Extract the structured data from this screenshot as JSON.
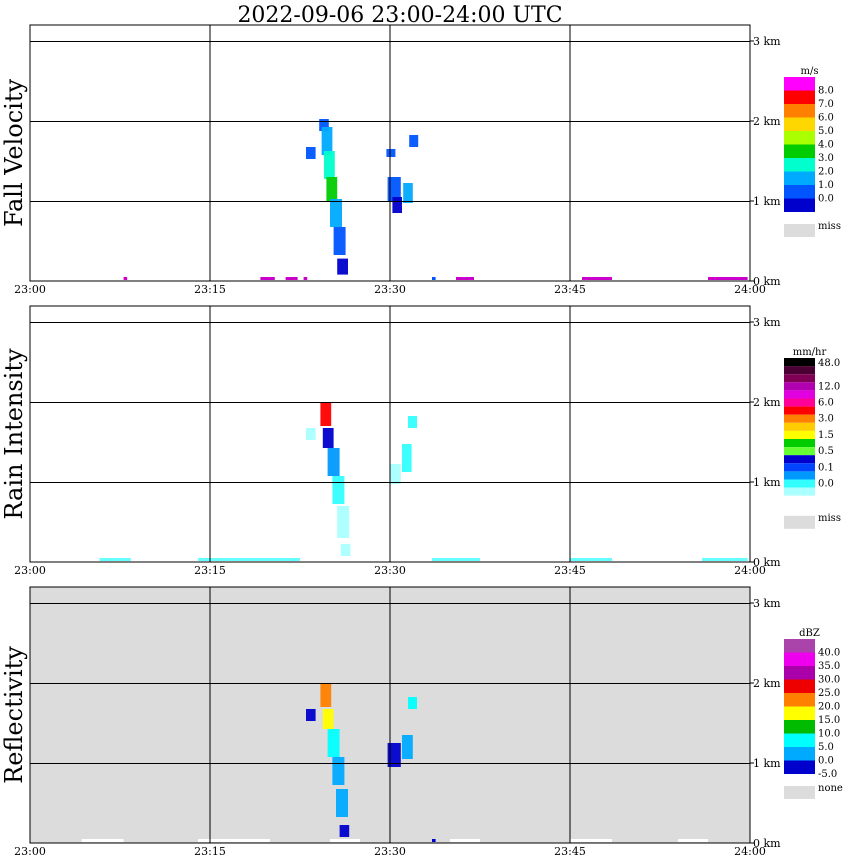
{
  "title": "2022-09-06   23:00-24:00 UTC",
  "colors": {
    "background": "#ffffff",
    "grid": "#000000",
    "missing": "#dcdcdc"
  },
  "chart_data": [
    {
      "type": "heatmap",
      "ylabel": "Fall Velocity",
      "x_ticks": [
        "23:00",
        "23:15",
        "23:30",
        "23:45",
        "24:00"
      ],
      "y_ticks": [
        "0 km",
        "1 km",
        "2 km",
        "3 km"
      ],
      "ylim_km": [
        0,
        3.0
      ],
      "panel_background": "#ffffff",
      "colorbar": {
        "unit": "m/s",
        "labels": [
          "8.0",
          "7.0",
          "6.0",
          "5.0",
          "4.0",
          "3.0",
          "2.0",
          "1.0",
          "0.0"
        ],
        "colors": [
          "#ff00ff",
          "#ff0000",
          "#ff7f00",
          "#ffd700",
          "#aaff00",
          "#00cc00",
          "#00ffcc",
          "#00aaff",
          "#0055ff",
          "#0000cc"
        ],
        "miss_label": "miss"
      },
      "cells": [
        {
          "t": 24.1,
          "h": 1.95,
          "w": 0.3,
          "d": 0.15,
          "c": "#0055ff"
        },
        {
          "t": 24.3,
          "h": 1.75,
          "w": 0.4,
          "d": 0.35,
          "c": "#00aaff"
        },
        {
          "t": 24.5,
          "h": 1.45,
          "w": 0.4,
          "d": 0.35,
          "c": "#00ffcc"
        },
        {
          "t": 24.7,
          "h": 1.15,
          "w": 0.4,
          "d": 0.3,
          "c": "#00cc00"
        },
        {
          "t": 25.0,
          "h": 0.85,
          "w": 0.5,
          "d": 0.35,
          "c": "#00aaff"
        },
        {
          "t": 25.3,
          "h": 0.5,
          "w": 0.5,
          "d": 0.35,
          "c": "#0055ff"
        },
        {
          "t": 25.6,
          "h": 0.18,
          "w": 0.4,
          "d": 0.2,
          "c": "#0000cc"
        },
        {
          "t": 23.0,
          "h": 1.6,
          "w": 0.3,
          "d": 0.15,
          "c": "#0055ff"
        },
        {
          "t": 29.8,
          "h": 1.15,
          "w": 0.6,
          "d": 0.3,
          "c": "#0055ff"
        },
        {
          "t": 30.2,
          "h": 0.95,
          "w": 0.3,
          "d": 0.2,
          "c": "#0000cc"
        },
        {
          "t": 31.1,
          "h": 1.1,
          "w": 0.3,
          "d": 0.25,
          "c": "#00aaff"
        },
        {
          "t": 31.6,
          "h": 1.75,
          "w": 0.25,
          "d": 0.15,
          "c": "#0055ff"
        },
        {
          "t": 29.7,
          "h": 1.6,
          "w": 0.2,
          "d": 0.1,
          "c": "#0055ff"
        }
      ],
      "surface": [
        {
          "t": 7.8,
          "w": 0.3,
          "c": "#cc00cc"
        },
        {
          "t": 19.2,
          "w": 1.2,
          "c": "#cc00cc"
        },
        {
          "t": 21.3,
          "w": 1.0,
          "c": "#cc00cc"
        },
        {
          "t": 22.8,
          "w": 0.3,
          "c": "#cc00cc"
        },
        {
          "t": 33.5,
          "w": 0.3,
          "c": "#0055ff"
        },
        {
          "t": 35.5,
          "w": 1.5,
          "c": "#cc00cc"
        },
        {
          "t": 46.0,
          "w": 2.5,
          "c": "#cc00cc"
        },
        {
          "t": 56.5,
          "w": 3.3,
          "c": "#cc00cc"
        }
      ]
    },
    {
      "type": "heatmap",
      "ylabel": "Rain Intensity",
      "x_ticks": [
        "23:00",
        "23:15",
        "23:30",
        "23:45",
        "24:00"
      ],
      "y_ticks": [
        "0 km",
        "1 km",
        "2 km",
        "3 km"
      ],
      "ylim_km": [
        0,
        3.0
      ],
      "panel_background": "#ffffff",
      "colorbar": {
        "unit": "mm/hr",
        "labels": [
          "48.0",
          "12.0",
          "6.0",
          "3.0",
          "1.5",
          "0.5",
          "0.1",
          "0.0"
        ],
        "colors": [
          "#000000",
          "#4a0033",
          "#800055",
          "#b000b0",
          "#e000e0",
          "#ff0099",
          "#ff0000",
          "#ff7f00",
          "#ffcc00",
          "#ffff00",
          "#00cc00",
          "#66ff33",
          "#0000cc",
          "#0044ff",
          "#0099ff",
          "#33ffff",
          "#aaffff",
          "#ffffff"
        ],
        "miss_label": "miss"
      },
      "cells": [
        {
          "t": 24.2,
          "h": 1.85,
          "w": 0.4,
          "d": 0.3,
          "c": "#ff0000"
        },
        {
          "t": 24.4,
          "h": 1.55,
          "w": 0.4,
          "d": 0.25,
          "c": "#0000cc"
        },
        {
          "t": 24.8,
          "h": 1.25,
          "w": 0.5,
          "d": 0.35,
          "c": "#0099ff"
        },
        {
          "t": 25.2,
          "h": 0.9,
          "w": 0.5,
          "d": 0.35,
          "c": "#33ffff"
        },
        {
          "t": 25.6,
          "h": 0.5,
          "w": 0.5,
          "d": 0.4,
          "c": "#aaffff"
        },
        {
          "t": 25.9,
          "h": 0.15,
          "w": 0.3,
          "d": 0.15,
          "c": "#aaffff"
        },
        {
          "t": 23.0,
          "h": 1.6,
          "w": 0.3,
          "d": 0.15,
          "c": "#aaffff"
        },
        {
          "t": 30.0,
          "h": 1.1,
          "w": 0.4,
          "d": 0.25,
          "c": "#aaffff"
        },
        {
          "t": 31.0,
          "h": 1.3,
          "w": 0.3,
          "d": 0.35,
          "c": "#33ffff"
        },
        {
          "t": 31.5,
          "h": 1.75,
          "w": 0.2,
          "d": 0.15,
          "c": "#33ffff"
        }
      ],
      "surface": [
        {
          "t": 5.8,
          "w": 2.6,
          "c": "#66ffff"
        },
        {
          "t": 14.0,
          "w": 8.5,
          "c": "#66ffff"
        },
        {
          "t": 33.5,
          "w": 4.0,
          "c": "#66ffff"
        },
        {
          "t": 45.0,
          "w": 3.5,
          "c": "#66ffff"
        },
        {
          "t": 56.0,
          "w": 3.8,
          "c": "#66ffff"
        }
      ]
    },
    {
      "type": "heatmap",
      "ylabel": "Reflectivity",
      "x_ticks": [
        "23:00",
        "23:15",
        "23:30",
        "23:45",
        "24:00"
      ],
      "y_ticks": [
        "0 km",
        "1 km",
        "2 km",
        "3 km"
      ],
      "ylim_km": [
        0,
        3.0
      ],
      "panel_background": "#dcdcdc",
      "colorbar": {
        "unit": "dBZ",
        "labels": [
          "40.0",
          "35.0",
          "30.0",
          "25.0",
          "20.0",
          "15.0",
          "10.0",
          "5.0",
          "0.0",
          "-5.0"
        ],
        "colors": [
          "#aa44aa",
          "#ee00ee",
          "#aa00aa",
          "#ee0000",
          "#ff7f00",
          "#ffff00",
          "#00bb00",
          "#00ffff",
          "#00aaff",
          "#0000cc"
        ],
        "miss_label": "none"
      },
      "cells": [
        {
          "t": 24.2,
          "h": 1.85,
          "w": 0.4,
          "d": 0.3,
          "c": "#ff7f00"
        },
        {
          "t": 24.4,
          "h": 1.55,
          "w": 0.4,
          "d": 0.25,
          "c": "#ffff00"
        },
        {
          "t": 24.8,
          "h": 1.25,
          "w": 0.5,
          "d": 0.35,
          "c": "#00ffff"
        },
        {
          "t": 25.2,
          "h": 0.9,
          "w": 0.5,
          "d": 0.35,
          "c": "#00aaff"
        },
        {
          "t": 25.5,
          "h": 0.5,
          "w": 0.5,
          "d": 0.35,
          "c": "#00aaff"
        },
        {
          "t": 25.8,
          "h": 0.15,
          "w": 0.3,
          "d": 0.15,
          "c": "#0000cc"
        },
        {
          "t": 23.0,
          "h": 1.6,
          "w": 0.3,
          "d": 0.15,
          "c": "#0000cc"
        },
        {
          "t": 29.8,
          "h": 1.1,
          "w": 0.6,
          "d": 0.3,
          "c": "#0000cc"
        },
        {
          "t": 31.0,
          "h": 1.2,
          "w": 0.4,
          "d": 0.3,
          "c": "#00aaff"
        },
        {
          "t": 31.5,
          "h": 1.75,
          "w": 0.25,
          "d": 0.15,
          "c": "#00ffff"
        }
      ],
      "surface": [
        {
          "t": 4.3,
          "w": 3.5,
          "c": "#ffffff"
        },
        {
          "t": 14.0,
          "w": 6.0,
          "c": "#ffffff"
        },
        {
          "t": 25.0,
          "w": 2.5,
          "c": "#ffffff"
        },
        {
          "t": 33.5,
          "w": 0.3,
          "c": "#0000cc"
        },
        {
          "t": 35.0,
          "w": 2.5,
          "c": "#ffffff"
        },
        {
          "t": 45.0,
          "w": 3.5,
          "c": "#ffffff"
        },
        {
          "t": 54.0,
          "w": 2.5,
          "c": "#ffffff"
        }
      ]
    }
  ]
}
